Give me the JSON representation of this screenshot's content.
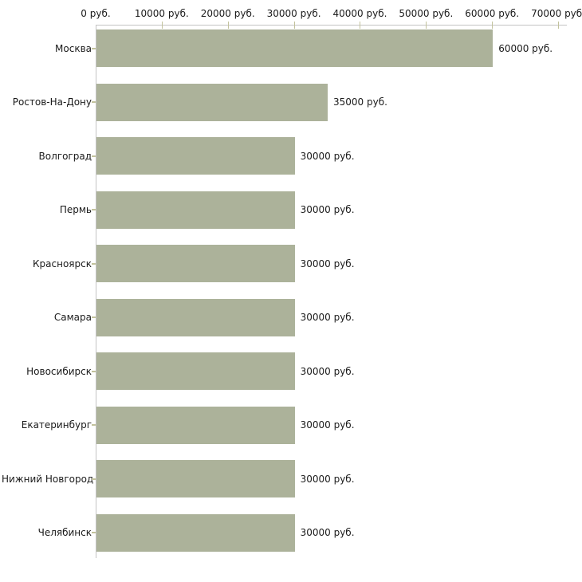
{
  "chart": {
    "background_color": "#ffffff",
    "bar_color": "#acb29a",
    "axis_color": "#c3c3c3",
    "tick_color": "#c2c29c",
    "text_color": "#1a1a1a"
  },
  "chart_data": {
    "type": "bar",
    "orientation": "horizontal",
    "title": "",
    "xlabel": "",
    "ylabel": "",
    "grid": false,
    "legend": false,
    "xlim": [
      0,
      71200
    ],
    "x_tick_values": [
      0,
      10000,
      20000,
      30000,
      40000,
      50000,
      60000,
      70000
    ],
    "x_tick_labels": [
      "0 руб.",
      "10000 руб.",
      "20000 руб.",
      "30000 руб.",
      "40000 руб.",
      "50000 руб.",
      "60000 руб.",
      "70000 руб."
    ],
    "categories": [
      "Москва",
      "Ростов-На-Дону",
      "Волгоград",
      "Пермь",
      "Красноярск",
      "Самара",
      "Новосибирск",
      "Екатеринбург",
      "Нижний Новгород",
      "Челябинск"
    ],
    "values": [
      60000,
      35000,
      30000,
      30000,
      30000,
      30000,
      30000,
      30000,
      30000,
      30000
    ],
    "value_labels": [
      "60000 руб.",
      "35000 руб.",
      "30000 руб.",
      "30000 руб.",
      "30000 руб.",
      "30000 руб.",
      "30000 руб.",
      "30000 руб.",
      "30000 руб.",
      "30000 руб."
    ]
  }
}
